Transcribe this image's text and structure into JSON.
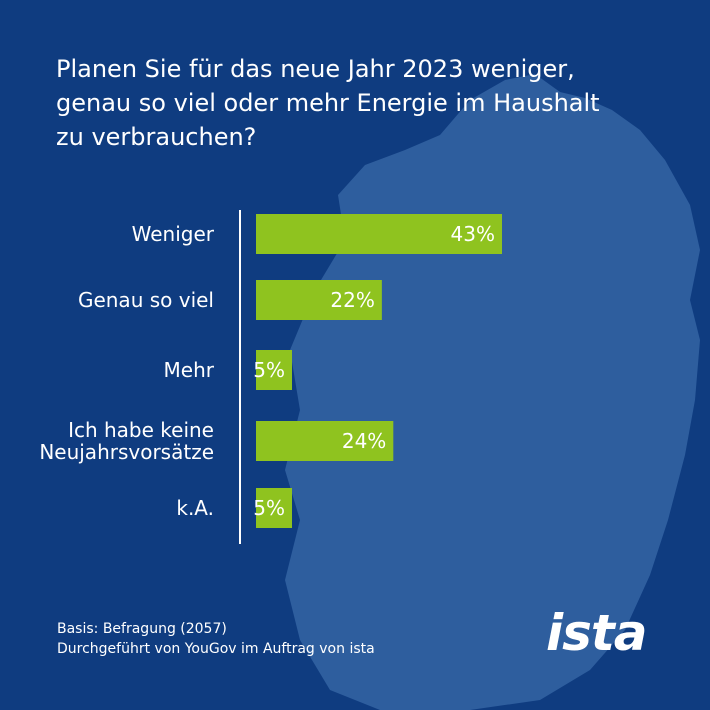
{
  "title_lines": [
    "Planen Sie für das neue Jahr 2023 weniger,",
    "genau so viel oder mehr Energie im Haushalt",
    "zu verbrauchen?"
  ],
  "chart_data": {
    "type": "bar",
    "orientation": "horizontal",
    "categories": [
      [
        "Weniger"
      ],
      [
        "Genau so viel"
      ],
      [
        "Mehr"
      ],
      [
        "Ich habe keine",
        "Neujahrsvorsätze"
      ],
      [
        "k.A."
      ]
    ],
    "values": [
      43,
      22,
      5,
      24,
      5
    ],
    "value_labels": [
      "43%",
      "22%",
      "5%",
      "24%",
      "5%"
    ],
    "unit": "%",
    "xlim": [
      0,
      43
    ],
    "grid": false,
    "bar_color": "#8fc31f"
  },
  "footer": {
    "line1": "Basis: Befragung  (2057)",
    "line2": "Durchgeführt von YouGov im Auftrag von ista"
  },
  "logo_text": "ista",
  "colors": {
    "background": "#0f3c80",
    "map": "#3a6aa8",
    "bar": "#8fc31f",
    "text": "#ffffff"
  }
}
